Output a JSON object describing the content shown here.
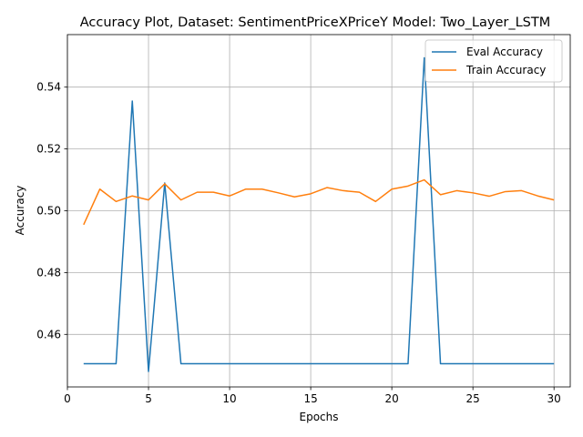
{
  "chart_data": {
    "type": "line",
    "title": "Accuracy Plot, Dataset: SentimentPriceXPriceY Model: Two_Layer_LSTM",
    "xlabel": "Epochs",
    "ylabel": "Accuracy",
    "xlim": [
      0,
      31
    ],
    "ylim": [
      0.443,
      0.557
    ],
    "xticks": [
      0,
      5,
      10,
      15,
      20,
      25,
      30
    ],
    "yticks": [
      0.46,
      0.48,
      0.5,
      0.52,
      0.54
    ],
    "ytick_labels": [
      "0.46",
      "0.48",
      "0.50",
      "0.52",
      "0.54"
    ],
    "xtick_labels": [
      "0",
      "5",
      "10",
      "15",
      "20",
      "25",
      "30"
    ],
    "grid": true,
    "legend_position": "top-right",
    "x": [
      1,
      2,
      3,
      4,
      5,
      6,
      7,
      8,
      9,
      10,
      11,
      12,
      13,
      14,
      15,
      16,
      17,
      18,
      19,
      20,
      21,
      22,
      23,
      24,
      25,
      26,
      27,
      28,
      29,
      30
    ],
    "series": [
      {
        "name": "Eval Accuracy",
        "color": "#1f77b4",
        "values": [
          0.4505,
          0.4505,
          0.4505,
          0.5355,
          0.448,
          0.509,
          0.4505,
          0.4505,
          0.4505,
          0.4505,
          0.4505,
          0.4505,
          0.4505,
          0.4505,
          0.4505,
          0.4505,
          0.4505,
          0.4505,
          0.4505,
          0.4505,
          0.4505,
          0.5495,
          0.4505,
          0.4505,
          0.4505,
          0.4505,
          0.4505,
          0.4505,
          0.4505,
          0.4505
        ]
      },
      {
        "name": "Train Accuracy",
        "color": "#ff7f0e",
        "values": [
          0.4955,
          0.507,
          0.503,
          0.5048,
          0.5035,
          0.5087,
          0.5035,
          0.506,
          0.506,
          0.5048,
          0.507,
          0.507,
          0.5058,
          0.5045,
          0.5055,
          0.5075,
          0.5065,
          0.506,
          0.503,
          0.507,
          0.508,
          0.51,
          0.5052,
          0.5065,
          0.5058,
          0.5047,
          0.5062,
          0.5065,
          0.5048,
          0.5035
        ]
      }
    ]
  }
}
